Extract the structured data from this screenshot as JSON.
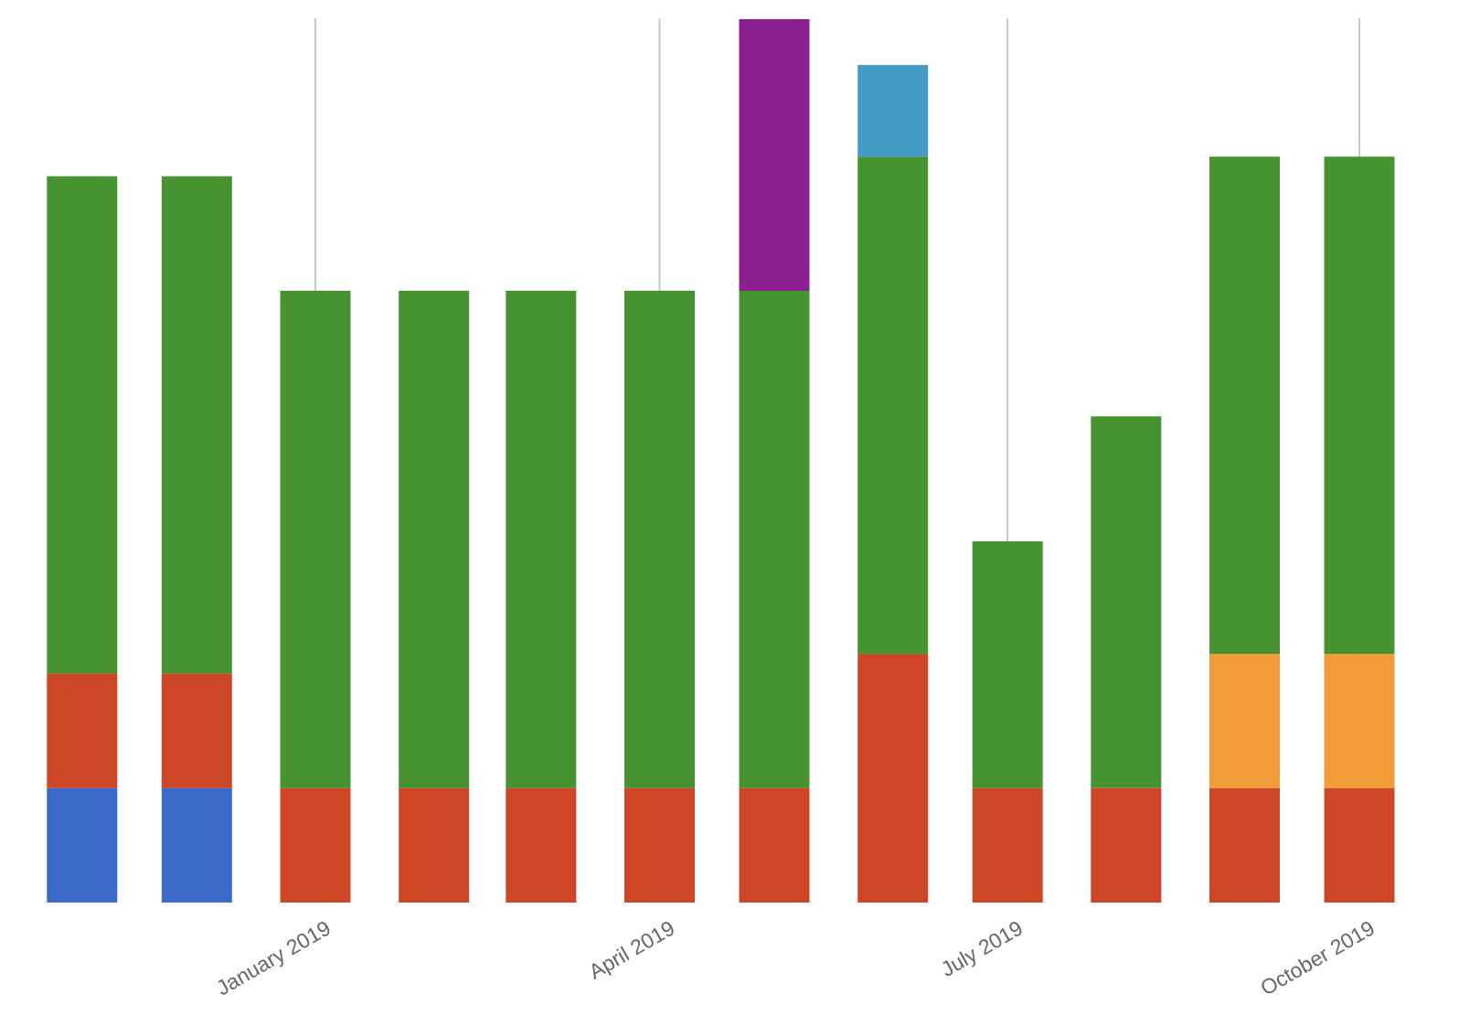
{
  "chart_data": {
    "type": "bar",
    "stacked": true,
    "x_axis": {
      "type": "time",
      "tick_labels": [
        {
          "label": "January 2019",
          "date": "2019-01-01"
        },
        {
          "label": "April 2019",
          "date": "2019-04-01"
        },
        {
          "label": "July 2019",
          "date": "2019-07-01"
        },
        {
          "label": "October 2019",
          "date": "2019-10-01"
        }
      ]
    },
    "y_axis": {
      "visible": false,
      "ylim": [
        0,
        1350
      ]
    },
    "grid": {
      "vertical_at_ticks": true,
      "horizontal": false
    },
    "legend": "none",
    "bars": [
      {
        "date": "2018-11-01",
        "segments": [
          {
            "color": "#3b6ac8",
            "value": 175
          },
          {
            "color": "#cd4727",
            "value": 175
          },
          {
            "color": "#479331",
            "value": 760
          }
        ]
      },
      {
        "date": "2018-12-01",
        "segments": [
          {
            "color": "#3b6ac8",
            "value": 175
          },
          {
            "color": "#cd4727",
            "value": 175
          },
          {
            "color": "#479331",
            "value": 760
          }
        ]
      },
      {
        "date": "2019-01-01",
        "segments": [
          {
            "color": "#cd4727",
            "value": 175
          },
          {
            "color": "#479331",
            "value": 760
          }
        ]
      },
      {
        "date": "2019-02-01",
        "segments": [
          {
            "color": "#cd4727",
            "value": 175
          },
          {
            "color": "#479331",
            "value": 760
          }
        ]
      },
      {
        "date": "2019-03-01",
        "segments": [
          {
            "color": "#cd4727",
            "value": 175
          },
          {
            "color": "#479331",
            "value": 760
          }
        ]
      },
      {
        "date": "2019-04-01",
        "segments": [
          {
            "color": "#cd4727",
            "value": 175
          },
          {
            "color": "#479331",
            "value": 760
          }
        ]
      },
      {
        "date": "2019-05-01",
        "segments": [
          {
            "color": "#cd4727",
            "value": 175
          },
          {
            "color": "#479331",
            "value": 760
          },
          {
            "color": "#8b1f91",
            "value": 415
          }
        ]
      },
      {
        "date": "2019-06-01",
        "segments": [
          {
            "color": "#cd4727",
            "value": 380
          },
          {
            "color": "#479331",
            "value": 760
          },
          {
            "color": "#429bc4",
            "value": 140
          }
        ]
      },
      {
        "date": "2019-07-01",
        "segments": [
          {
            "color": "#cd4727",
            "value": 175
          },
          {
            "color": "#479331",
            "value": 377
          }
        ]
      },
      {
        "date": "2019-08-01",
        "segments": [
          {
            "color": "#cd4727",
            "value": 175
          },
          {
            "color": "#479331",
            "value": 568
          }
        ]
      },
      {
        "date": "2019-09-01",
        "segments": [
          {
            "color": "#cd4727",
            "value": 175
          },
          {
            "color": "#f29c39",
            "value": 205
          },
          {
            "color": "#479331",
            "value": 760
          }
        ]
      },
      {
        "date": "2019-10-01",
        "segments": [
          {
            "color": "#cd4727",
            "value": 175
          },
          {
            "color": "#f29c39",
            "value": 205
          },
          {
            "color": "#479331",
            "value": 760
          }
        ]
      }
    ]
  }
}
